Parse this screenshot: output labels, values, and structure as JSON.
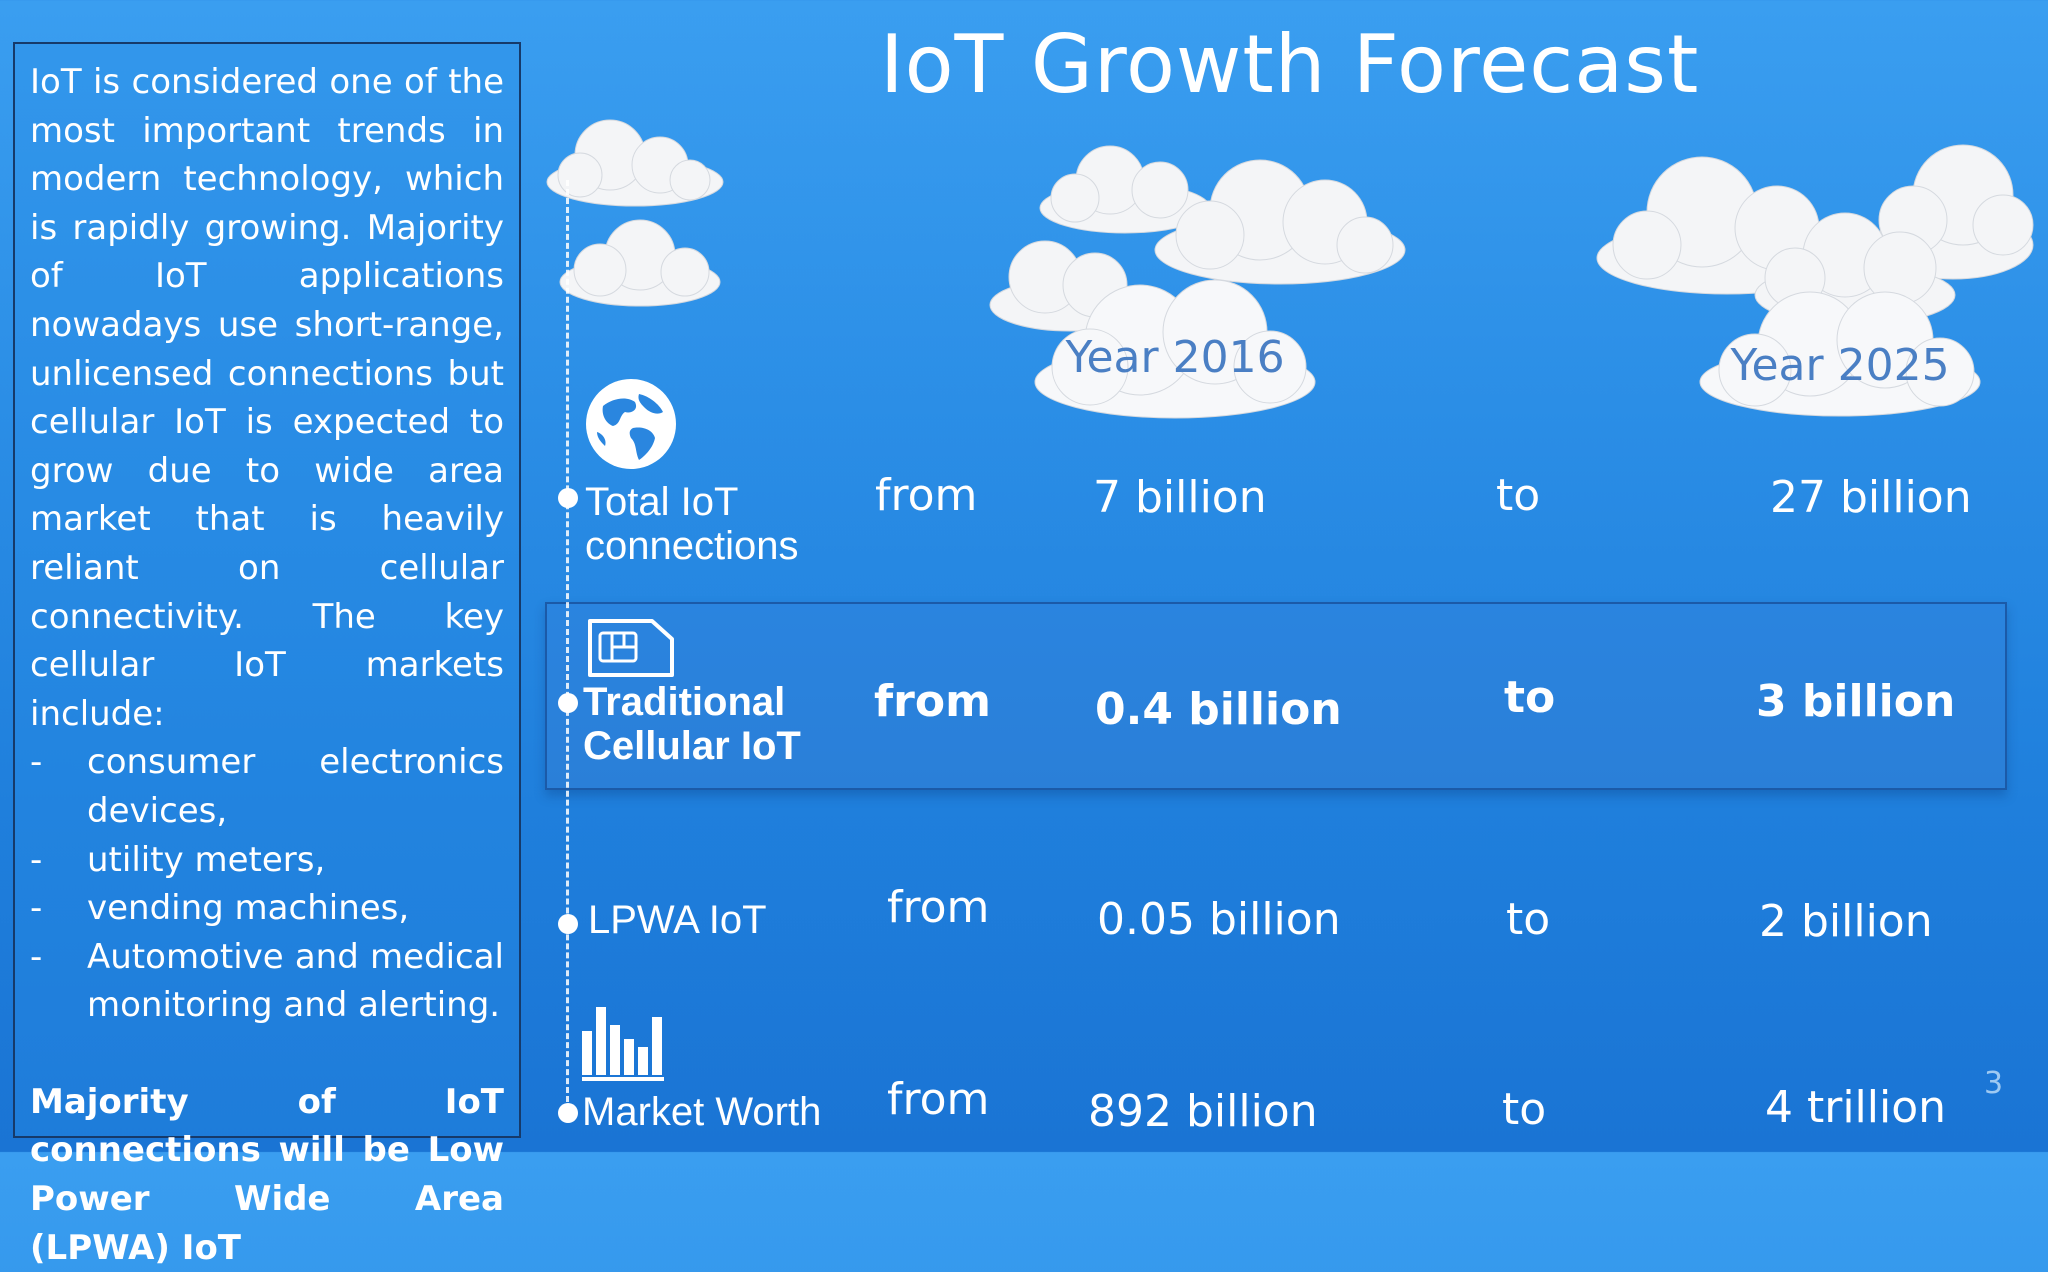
{
  "title": "IoT Growth Forecast",
  "panel": {
    "intro": "IoT is considered one of the most important trends in modern technology, which is rapidly growing. Majority of IoT applications nowadays use short-range, unlicensed connections but cellular IoT is expected to grow due to wide area market that is heavily reliant on cellular connectivity. The key cellular IoT markets include:",
    "bullets": [
      "consumer electronics devices,",
      "utility meters,",
      "vending machines,",
      "Automotive and medical monitoring and alerting."
    ],
    "bullet_marker": "-",
    "conclusion": "Majority of IoT connections will be Low Power Wide Area (LPWA) IoT"
  },
  "columns": {
    "year_start": "Year 2016",
    "year_end": "Year 2025"
  },
  "rows": [
    {
      "label_line1": "Total IoT",
      "label_line2": "connections",
      "from": "from",
      "start": "7 billion",
      "to": "to",
      "end": "27 billion",
      "icon": "globe-icon"
    },
    {
      "label_line1": "Traditional",
      "label_line2": "Cellular IoT",
      "from": "from",
      "start": "0.4 billion",
      "to": "to",
      "end": "3 billion",
      "icon": "sim-card-icon"
    },
    {
      "label_line1": "LPWA IoT",
      "from": "from",
      "start": "0.05 billion",
      "to": "to",
      "end": "2 billion"
    },
    {
      "label_line1": "Market Worth",
      "from": "from",
      "start": "892 billion",
      "to": "to",
      "end": "4 trillion",
      "icon": "bar-chart-icon"
    }
  ],
  "page_number": "3",
  "colors": {
    "background": "#2b8ee6",
    "highlight_band": "#2a82dc",
    "cloud_label": "#4a7fc4"
  }
}
